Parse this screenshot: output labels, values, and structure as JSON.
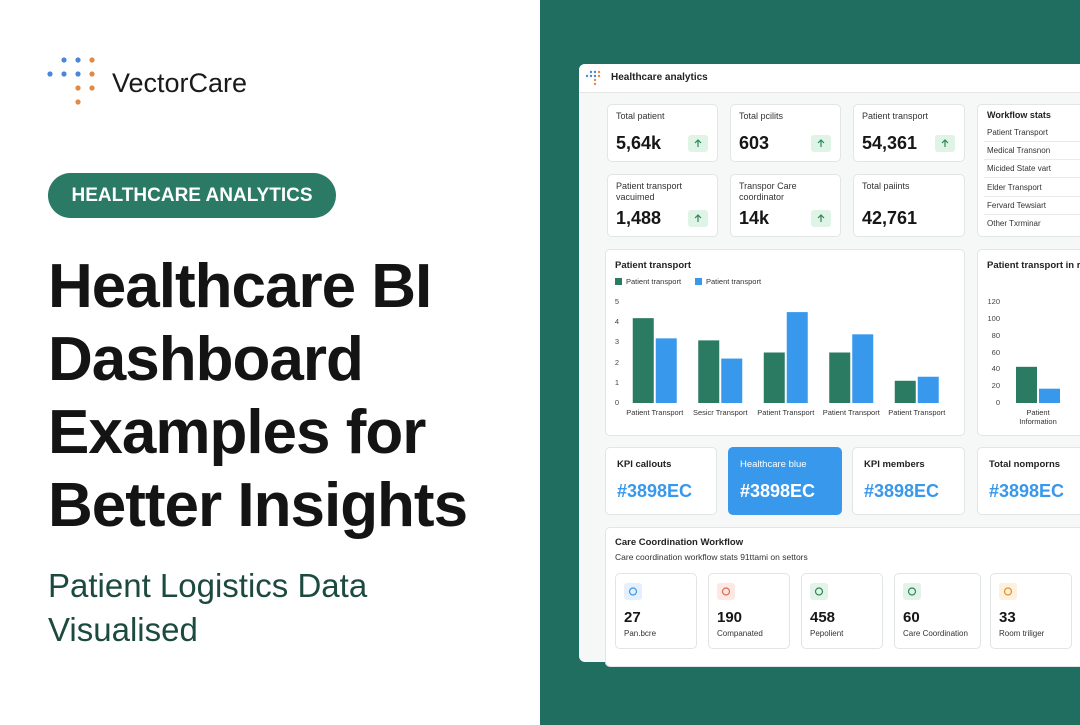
{
  "brand": {
    "name": "VectorCare"
  },
  "hero": {
    "badge": "HEALTHCARE ANALYTICS",
    "title": "Healthcare BI Dashboard Examples for Better Insights",
    "subtitle": "Patient Logistics Data Visualised"
  },
  "dashboard": {
    "title": "Healthcare analytics",
    "kpis": [
      {
        "label": "Total patient",
        "value": "5,64k"
      },
      {
        "label": "Total pcilits",
        "value": "603"
      },
      {
        "label": "Patient transport",
        "value": "54,361"
      },
      {
        "label": "Patient transport vacuimed",
        "value": "1,488"
      },
      {
        "label": "Transpor Care coordinator",
        "value": "14k"
      },
      {
        "label": "Total paiints",
        "value": "42,761"
      }
    ],
    "workflow_stats": {
      "title": "Workflow stats",
      "items": [
        "Patient Transport",
        "Medical Transnon",
        "Micided State vart",
        "Elder Transport",
        "Fervard Tewsiart",
        "Other Txrminar"
      ]
    },
    "chart1": {
      "type": "bar",
      "title": "Patient transport",
      "categories": [
        "Patient Transport",
        "Sesicr Transport",
        "Patient Transport",
        "Patient Transport",
        "Patient Transport"
      ],
      "series": [
        {
          "name": "Patient transport",
          "color": "#2b7a62",
          "values": [
            4.2,
            3.1,
            2.5,
            2.5,
            1.1
          ]
        },
        {
          "name": "Patient transport",
          "color": "#3898ec",
          "values": [
            3.2,
            2.2,
            4.5,
            3.4,
            1.3
          ]
        }
      ],
      "ylim": [
        0,
        5
      ],
      "yticks": [
        0,
        1,
        2,
        3,
        4,
        5
      ]
    },
    "chart2": {
      "type": "bar",
      "title": "Patient transport in r",
      "categories": [
        "Patient Information"
      ],
      "series": [
        {
          "color": "#2b7a62",
          "values": [
            43
          ]
        },
        {
          "color": "#3898ec",
          "values": [
            17
          ]
        }
      ],
      "ylim": [
        0,
        120
      ],
      "yticks": [
        0,
        20,
        40,
        60,
        80,
        100,
        120
      ]
    },
    "callouts": [
      {
        "label": "KPI callouts",
        "value": "#3898EC"
      },
      {
        "label": "Healthcare blue",
        "value": "#3898EC"
      },
      {
        "label": "KPI members",
        "value": "#3898EC"
      },
      {
        "label": "Total nomporns",
        "value": "#3898EC"
      }
    ],
    "care": {
      "title": "Care Coordination Workflow",
      "subtitle": "Care coordination workflow stats 91ttami on settors",
      "items": [
        {
          "value": "27",
          "label": "Pan.bcre"
        },
        {
          "value": "190",
          "label": "Companated"
        },
        {
          "value": "458",
          "label": "Pepolient"
        },
        {
          "value": "60",
          "label": "Care Coordination"
        },
        {
          "value": "33",
          "label": "Room triliger"
        }
      ]
    }
  }
}
